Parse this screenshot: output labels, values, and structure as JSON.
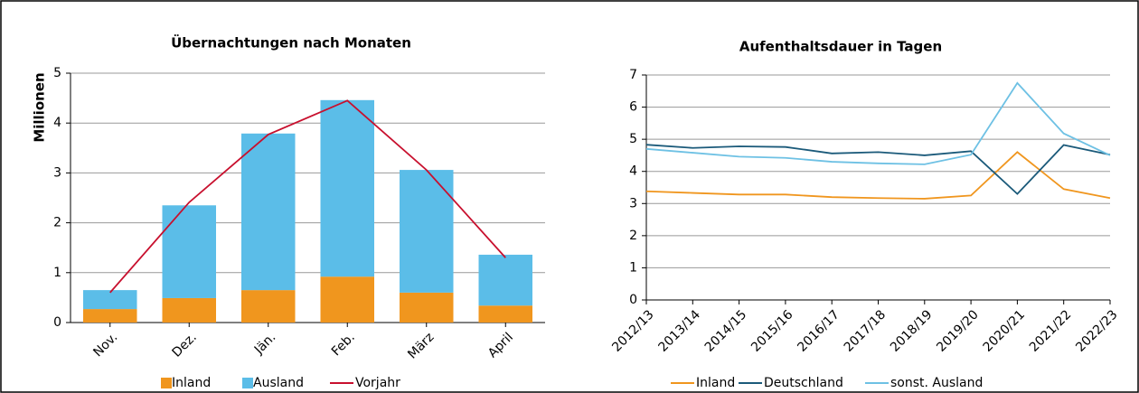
{
  "chart_data": [
    {
      "type": "bar",
      "stacked": true,
      "title": "Übernachtungen nach Monaten",
      "ylabel": "Millionen",
      "categories": [
        "Nov.",
        "Dez.",
        "Jän.",
        "Feb.",
        "März",
        "April"
      ],
      "series": [
        {
          "name": "Inland",
          "color": "#f0961e",
          "values": [
            0.27,
            0.49,
            0.65,
            0.92,
            0.6,
            0.34
          ]
        },
        {
          "name": "Ausland",
          "color": "#5bbde8",
          "values": [
            0.38,
            1.86,
            3.14,
            3.54,
            2.46,
            1.02
          ]
        },
        {
          "name": "Vorjahr",
          "type": "line",
          "color": "#c8102e",
          "values": [
            0.6,
            2.41,
            3.77,
            4.45,
            3.06,
            1.3
          ]
        }
      ],
      "ylim": [
        0,
        5
      ],
      "yticks": [
        0,
        1,
        2,
        3,
        4,
        5
      ],
      "grid": true
    },
    {
      "type": "line",
      "title": "Aufenthaltsdauer in Tagen",
      "categories": [
        "2012/13",
        "2013/14",
        "2014/15",
        "2015/16",
        "2016/17",
        "2017/18",
        "2018/19",
        "2019/20",
        "2020/21",
        "2021/22",
        "2022/23"
      ],
      "series": [
        {
          "name": "Inland",
          "color": "#f0961e",
          "values": [
            3.38,
            3.33,
            3.28,
            3.28,
            3.2,
            3.17,
            3.15,
            3.25,
            4.6,
            3.45,
            3.17
          ]
        },
        {
          "name": "Deutschland",
          "color": "#1b5a7a",
          "values": [
            4.83,
            4.73,
            4.78,
            4.76,
            4.56,
            4.6,
            4.5,
            4.63,
            3.3,
            4.82,
            4.52
          ]
        },
        {
          "name": "sonst. Ausland",
          "color": "#6ec1e4",
          "values": [
            4.7,
            4.58,
            4.46,
            4.42,
            4.3,
            4.25,
            4.22,
            4.52,
            6.75,
            5.18,
            4.5
          ]
        }
      ],
      "ylim": [
        0,
        7
      ],
      "yticks": [
        0,
        1,
        2,
        3,
        4,
        5,
        6,
        7
      ],
      "grid": true
    }
  ]
}
